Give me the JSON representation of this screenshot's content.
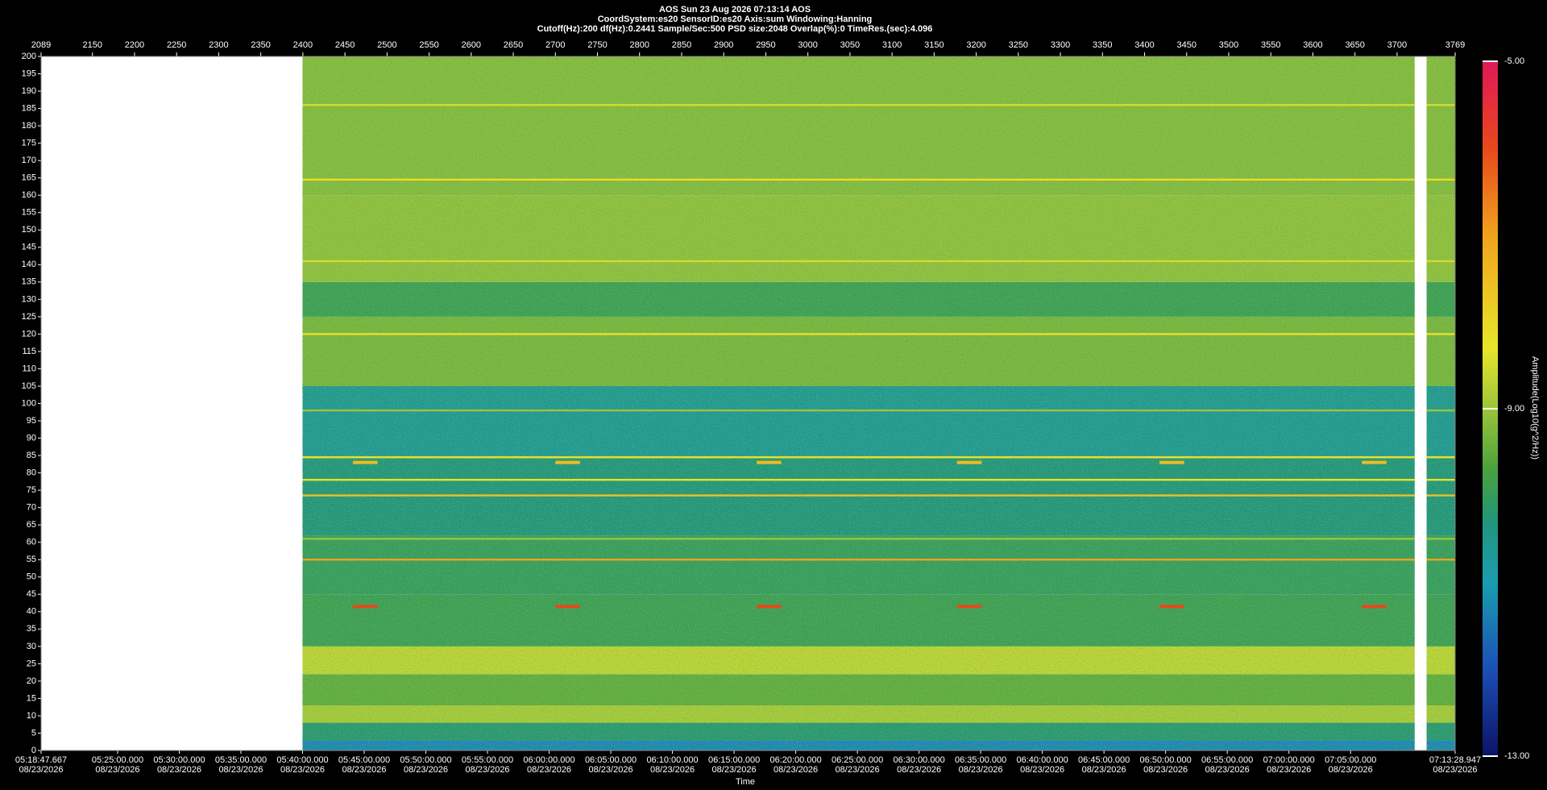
{
  "chart_data": {
    "type": "spectrogram",
    "title": "AOS  Sun 23 Aug 2026 07:13:14  AOS",
    "subtitle": "CoordSystem:es20   SensorID:es20    Axis:sum    Windowing:Hanning",
    "info": "Cutoff(Hz):200      df(Hz):0.2441       Sample/Sec:500       PSD size:2048        Overlap(%):0        TimeRes.(sec):4.096",
    "x_label": "Time",
    "colorbar_label": "Amplitude(Log10(g^2/Hz))",
    "xlim": [
      2089,
      3769
    ],
    "xticks": [
      2089,
      2150,
      2200,
      2250,
      2300,
      2350,
      2400,
      2450,
      2500,
      2550,
      2600,
      2650,
      2700,
      2750,
      2800,
      2850,
      2900,
      2950,
      3000,
      3050,
      3100,
      3150,
      3200,
      3250,
      3300,
      3350,
      3400,
      3450,
      3500,
      3550,
      3600,
      3650,
      3700,
      3769
    ],
    "timelim": [
      "2026-08-23T05:18:47.667",
      "2026-08-23T07:13:28.947"
    ],
    "timeticks": [
      {
        "value": "2026-08-23T05:18:47.667",
        "label": "05:18:47.667",
        "date": "08/23/2026"
      },
      {
        "value": "2026-08-23T05:25:00",
        "label": "05:25:00.000",
        "date": "08/23/2026"
      },
      {
        "value": "2026-08-23T05:30:00",
        "label": "05:30:00.000",
        "date": "08/23/2026"
      },
      {
        "value": "2026-08-23T05:35:00",
        "label": "05:35:00.000",
        "date": "08/23/2026"
      },
      {
        "value": "2026-08-23T05:40:00",
        "label": "05:40:00.000",
        "date": "08/23/2026"
      },
      {
        "value": "2026-08-23T05:45:00",
        "label": "05:45:00.000",
        "date": "08/23/2026"
      },
      {
        "value": "2026-08-23T05:50:00",
        "label": "05:50:00.000",
        "date": "08/23/2026"
      },
      {
        "value": "2026-08-23T05:55:00",
        "label": "05:55:00.000",
        "date": "08/23/2026"
      },
      {
        "value": "2026-08-23T06:00:00",
        "label": "06:00:00.000",
        "date": "08/23/2026"
      },
      {
        "value": "2026-08-23T06:05:00",
        "label": "06:05:00.000",
        "date": "08/23/2026"
      },
      {
        "value": "2026-08-23T06:10:00",
        "label": "06:10:00.000",
        "date": "08/23/2026"
      },
      {
        "value": "2026-08-23T06:15:00",
        "label": "06:15:00.000",
        "date": "08/23/2026"
      },
      {
        "value": "2026-08-23T06:20:00",
        "label": "06:20:00.000",
        "date": "08/23/2026"
      },
      {
        "value": "2026-08-23T06:25:00",
        "label": "06:25:00.000",
        "date": "08/23/2026"
      },
      {
        "value": "2026-08-23T06:30:00",
        "label": "06:30:00.000",
        "date": "08/23/2026"
      },
      {
        "value": "2026-08-23T06:35:00",
        "label": "06:35:00.000",
        "date": "08/23/2026"
      },
      {
        "value": "2026-08-23T06:40:00",
        "label": "06:40:00.000",
        "date": "08/23/2026"
      },
      {
        "value": "2026-08-23T06:45:00",
        "label": "06:45:00.000",
        "date": "08/23/2026"
      },
      {
        "value": "2026-08-23T06:50:00",
        "label": "06:50:00.000",
        "date": "08/23/2026"
      },
      {
        "value": "2026-08-23T06:55:00",
        "label": "06:55:00.000",
        "date": "08/23/2026"
      },
      {
        "value": "2026-08-23T07:00:00",
        "label": "07:00:00.000",
        "date": "08/23/2026"
      },
      {
        "value": "2026-08-23T07:05:00",
        "label": "07:05:00.000",
        "date": "08/23/2026"
      },
      {
        "value": "2026-08-23T07:13:28.947",
        "label": "07:13:28.947",
        "date": "08/23/2026"
      }
    ],
    "ylim": [
      0,
      200
    ],
    "yticks": [
      0,
      5,
      10,
      15,
      20,
      25,
      30,
      35,
      40,
      45,
      50,
      55,
      60,
      65,
      70,
      75,
      80,
      85,
      90,
      95,
      100,
      105,
      110,
      115,
      120,
      125,
      130,
      135,
      140,
      145,
      150,
      155,
      160,
      165,
      170,
      175,
      180,
      185,
      190,
      195,
      200
    ],
    "clim": [
      -13,
      -5
    ],
    "cticks": [
      {
        "value": -5,
        "label": "-5.00"
      },
      {
        "value": -9,
        "label": "-9.00"
      },
      {
        "value": -13,
        "label": "-13.00"
      }
    ],
    "colormap": [
      {
        "value": -13,
        "color": "#0b1466"
      },
      {
        "value": -12,
        "color": "#1c4fb4"
      },
      {
        "value": -11,
        "color": "#1a9db0"
      },
      {
        "value": -10.3,
        "color": "#22957a"
      },
      {
        "value": -9.7,
        "color": "#4aa23e"
      },
      {
        "value": -9,
        "color": "#9cc43a"
      },
      {
        "value": -8.3,
        "color": "#e8e62a"
      },
      {
        "value": -7,
        "color": "#f0a21e"
      },
      {
        "value": -6,
        "color": "#e8481c"
      },
      {
        "value": -5,
        "color": "#e01858"
      }
    ],
    "segments": [
      [
        "2026-08-23T05:40:00",
        "2026-08-23T07:10:12"
      ],
      [
        "2026-08-23T07:11:10",
        "2026-08-23T07:13:28.947"
      ]
    ],
    "bands": [
      {
        "from": 0,
        "to": 3,
        "amplitude": -11.3
      },
      {
        "from": 3,
        "to": 8,
        "amplitude": -10.2
      },
      {
        "from": 8,
        "to": 13,
        "amplitude": -8.9
      },
      {
        "from": 13,
        "to": 22,
        "amplitude": -9.5
      },
      {
        "from": 22,
        "to": 30,
        "amplitude": -8.7
      },
      {
        "from": 30,
        "to": 45,
        "amplitude": -9.9
      },
      {
        "from": 45,
        "to": 62,
        "amplitude": -10.0
      },
      {
        "from": 62,
        "to": 85,
        "amplitude": -10.3
      },
      {
        "from": 85,
        "to": 105,
        "amplitude": -10.6
      },
      {
        "from": 105,
        "to": 125,
        "amplitude": -9.3
      },
      {
        "from": 125,
        "to": 135,
        "amplitude": -9.9
      },
      {
        "from": 135,
        "to": 160,
        "amplitude": -9.1
      },
      {
        "from": 160,
        "to": 200,
        "amplitude": -9.2
      }
    ],
    "tones": [
      {
        "freq": 55,
        "amplitude": -7
      },
      {
        "freq": 73.5,
        "amplitude": -7.6
      },
      {
        "freq": 78,
        "amplitude": -8.2
      },
      {
        "freq": 84.5,
        "amplitude": -8.2
      },
      {
        "freq": 61,
        "amplitude": -9
      },
      {
        "freq": 98,
        "amplitude": -9
      },
      {
        "freq": 120,
        "amplitude": -8.2
      },
      {
        "freq": 141,
        "amplitude": -8.5
      },
      {
        "freq": 164.5,
        "amplitude": -8.1
      },
      {
        "freq": 186,
        "amplitude": -8.5
      }
    ],
    "bursts": {
      "times": [
        "2026-08-23T05:44:05",
        "2026-08-23T06:00:30",
        "2026-08-23T06:16:50",
        "2026-08-23T06:33:05",
        "2026-08-23T06:49:30",
        "2026-08-23T07:05:55"
      ],
      "duration_s": 120,
      "freqs": [
        41.5,
        83
      ],
      "amplitudes": [
        -6,
        -7.5
      ]
    }
  }
}
